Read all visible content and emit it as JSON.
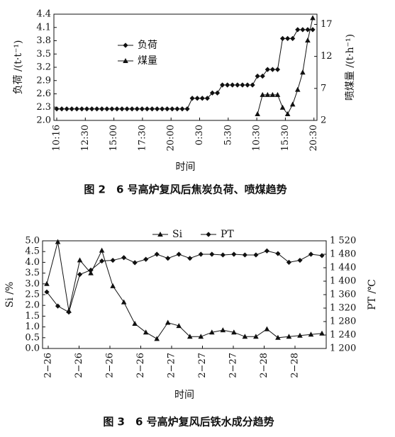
{
  "chart_data": [
    {
      "type": "line",
      "caption": "图 2　6 号高炉复风后焦炭负荷、喷煤趋势",
      "xlabel": "时间",
      "ylabel_left": "负荷 /(t·t⁻¹)",
      "ylabel_right": "喷煤量 /(t·h⁻¹)",
      "x_ticks": [
        "10:16",
        "12:30",
        "15:00",
        "17:30",
        "20:00",
        "0:30",
        "5:30",
        "10:30",
        "15:30",
        "20:30"
      ],
      "y_left_ticks": [
        "2.0",
        "2.3",
        "2.6",
        "2.9",
        "3.2",
        "3.5",
        "3.8",
        "4.1",
        "4.4"
      ],
      "y_left_lim": [
        2.0,
        4.4
      ],
      "y_right_ticks": [
        "2",
        "7",
        "12",
        "17"
      ],
      "y_right_lim": [
        2,
        18.6
      ],
      "grid": false,
      "legend_position": "upper-left",
      "series": [
        {
          "name": "负荷",
          "marker": "diamond",
          "axis": "left",
          "values": [
            2.26,
            2.26,
            2.26,
            2.26,
            2.26,
            2.26,
            2.26,
            2.26,
            2.26,
            2.26,
            2.26,
            2.26,
            2.26,
            2.26,
            2.26,
            2.26,
            2.26,
            2.26,
            2.26,
            2.26,
            2.26,
            2.26,
            2.26,
            2.26,
            2.26,
            2.26,
            2.26,
            2.5,
            2.5,
            2.5,
            2.5,
            2.62,
            2.62,
            2.8,
            2.8,
            2.8,
            2.8,
            2.8,
            2.8,
            2.8,
            3.0,
            3.0,
            3.15,
            3.15,
            3.15,
            3.85,
            3.85,
            3.85,
            4.05,
            4.05,
            4.05,
            4.05
          ]
        },
        {
          "name": "煤量",
          "marker": "triangle",
          "axis": "right",
          "values": [
            null,
            null,
            null,
            null,
            null,
            null,
            null,
            null,
            null,
            null,
            null,
            null,
            null,
            null,
            null,
            null,
            null,
            null,
            null,
            null,
            null,
            null,
            null,
            null,
            null,
            null,
            null,
            null,
            null,
            null,
            null,
            null,
            null,
            null,
            null,
            null,
            null,
            null,
            null,
            null,
            3.0,
            6.0,
            6.0,
            6.0,
            6.0,
            4.0,
            3.0,
            4.5,
            6.8,
            9.5,
            14.5,
            18.0
          ]
        }
      ]
    },
    {
      "type": "line",
      "caption": "图 3　6 号高炉复风后铁水成分趋势",
      "xlabel": "时间",
      "ylabel_left": "Si /%",
      "ylabel_right": "PT /℃",
      "x_ticks": [
        "2−26",
        "2−26",
        "2−26",
        "2−26",
        "2−27",
        "2−27",
        "2−27",
        "2−28",
        "2−28"
      ],
      "y_left_ticks": [
        "0.0",
        "0.5",
        "1.0",
        "1.5",
        "2.0",
        "2.5",
        "3.0",
        "3.5",
        "4.0",
        "4.5",
        "5.0"
      ],
      "y_left_lim": [
        0.0,
        5.0
      ],
      "y_right_ticks": [
        "1 200",
        "1 240",
        "1 280",
        "1 320",
        "1 360",
        "1 400",
        "1 440",
        "1 480",
        "1 520"
      ],
      "y_right_lim": [
        1200,
        1520
      ],
      "grid": false,
      "legend_position": "top",
      "series": [
        {
          "name": "Si",
          "marker": "triangle",
          "axis": "left",
          "values": [
            3.0,
            4.95,
            1.75,
            4.1,
            3.5,
            4.55,
            2.9,
            2.15,
            1.15,
            0.75,
            0.45,
            1.2,
            1.05,
            0.55,
            0.55,
            0.75,
            0.85,
            0.75,
            0.55,
            0.55,
            0.9,
            0.5,
            0.55,
            0.6,
            0.65,
            0.7
          ]
        },
        {
          "name": "PT",
          "marker": "diamond",
          "axis": "right",
          "values": [
            1368,
            1326,
            1308,
            1420,
            1433,
            1460,
            1462,
            1470,
            1455,
            1465,
            1480,
            1468,
            1480,
            1468,
            1480,
            1480,
            1478,
            1480,
            1478,
            1478,
            1490,
            1482,
            1456,
            1462,
            1480,
            1476
          ]
        }
      ]
    }
  ]
}
